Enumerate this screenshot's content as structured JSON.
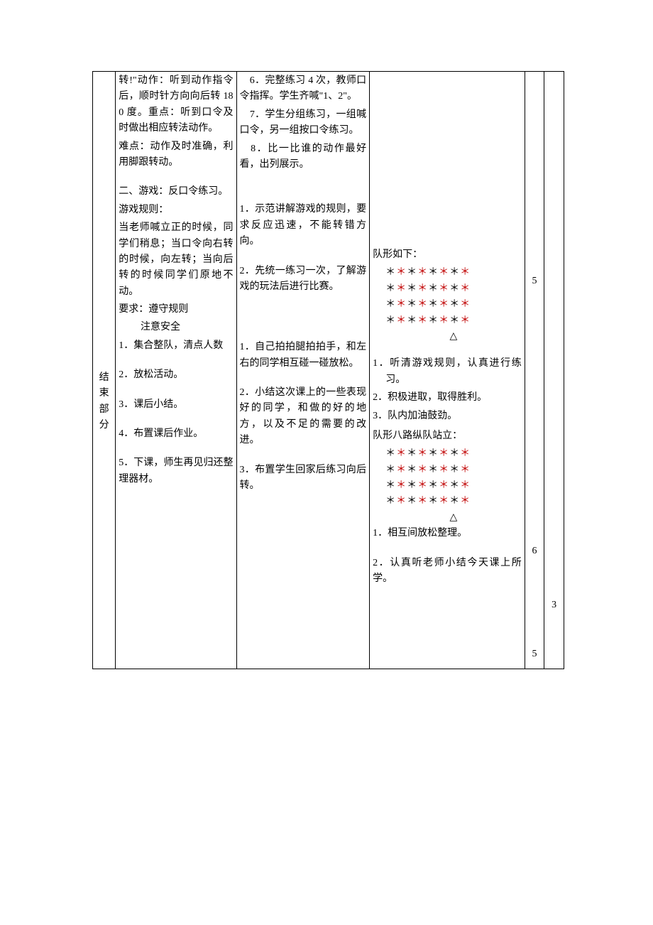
{
  "colors": {
    "text": "#000000",
    "red": "#c00000",
    "border": "#000000",
    "background": "#ffffff"
  },
  "section_label": [
    "结",
    "束",
    "部",
    "分"
  ],
  "col1": {
    "p1": "转!\"动作：听到动作指令后，顺时针方向向后转 180 度。重点：听到口令及时做出相应转法动作。",
    "p2": "难点：动作及时准确，利用脚跟转动。",
    "p3": "二、游戏：反口令练习。",
    "p4": "游戏规则：",
    "p5": "当老师喊立正的时候，同学们稍息；当口令向右转的时候，向左转；当向后转的时候同学们原地不动。",
    "p6": "要求：遵守规则",
    "p6b": "注意安全",
    "s1": "1．集合整队，清点人数",
    "s2": "2．放松活动。",
    "s3": "3．课后小结。",
    "s4": "4．布置课后作业。",
    "s5": "5．下课，师生再见归还整理器材。"
  },
  "col2": {
    "a1": "　6．完整练习 4 次，教师口令指挥。学生齐喊\"1、2\"。",
    "a2": "　7．学生分组练习，一组喊口令，另一组按口令练习。",
    "a3": "　8．比一比谁的动作最好看，出列展示。",
    "b1": "1．示范讲解游戏的规则，要求反应迅速，不能转错方向。",
    "b2": "2．先统一练习一次，了解游戏的玩法后进行比赛。",
    "c1": "1．自己拍拍腿拍拍手，和左右的同学相互碰一碰放松。",
    "c2": "2．小结这次课上的一些表现好的同学，和做的好的地方，以及不足的需要的改进。",
    "c3": "3．布置学生回家后练习向后转。"
  },
  "col3": {
    "f1_title": "队形如下：",
    "g1": "1．听清游戏规则，认真进行练习。",
    "g2": "2．积极进取，取得胜利。",
    "g3": "3．队内加油鼓劲。",
    "f2_title": "队形八路纵队站立：",
    "h1": "1．相互间放松整理。",
    "h2": "2．认真听老师小结今天课上所学。"
  },
  "stars": {
    "pattern": [
      "b",
      "r",
      "b",
      "r",
      "b",
      "r",
      "b",
      "r"
    ],
    "symbol": "＊",
    "triangle": "△"
  },
  "numbers_col1": [
    "5",
    "6",
    "5"
  ],
  "numbers_col2": [
    "3"
  ]
}
